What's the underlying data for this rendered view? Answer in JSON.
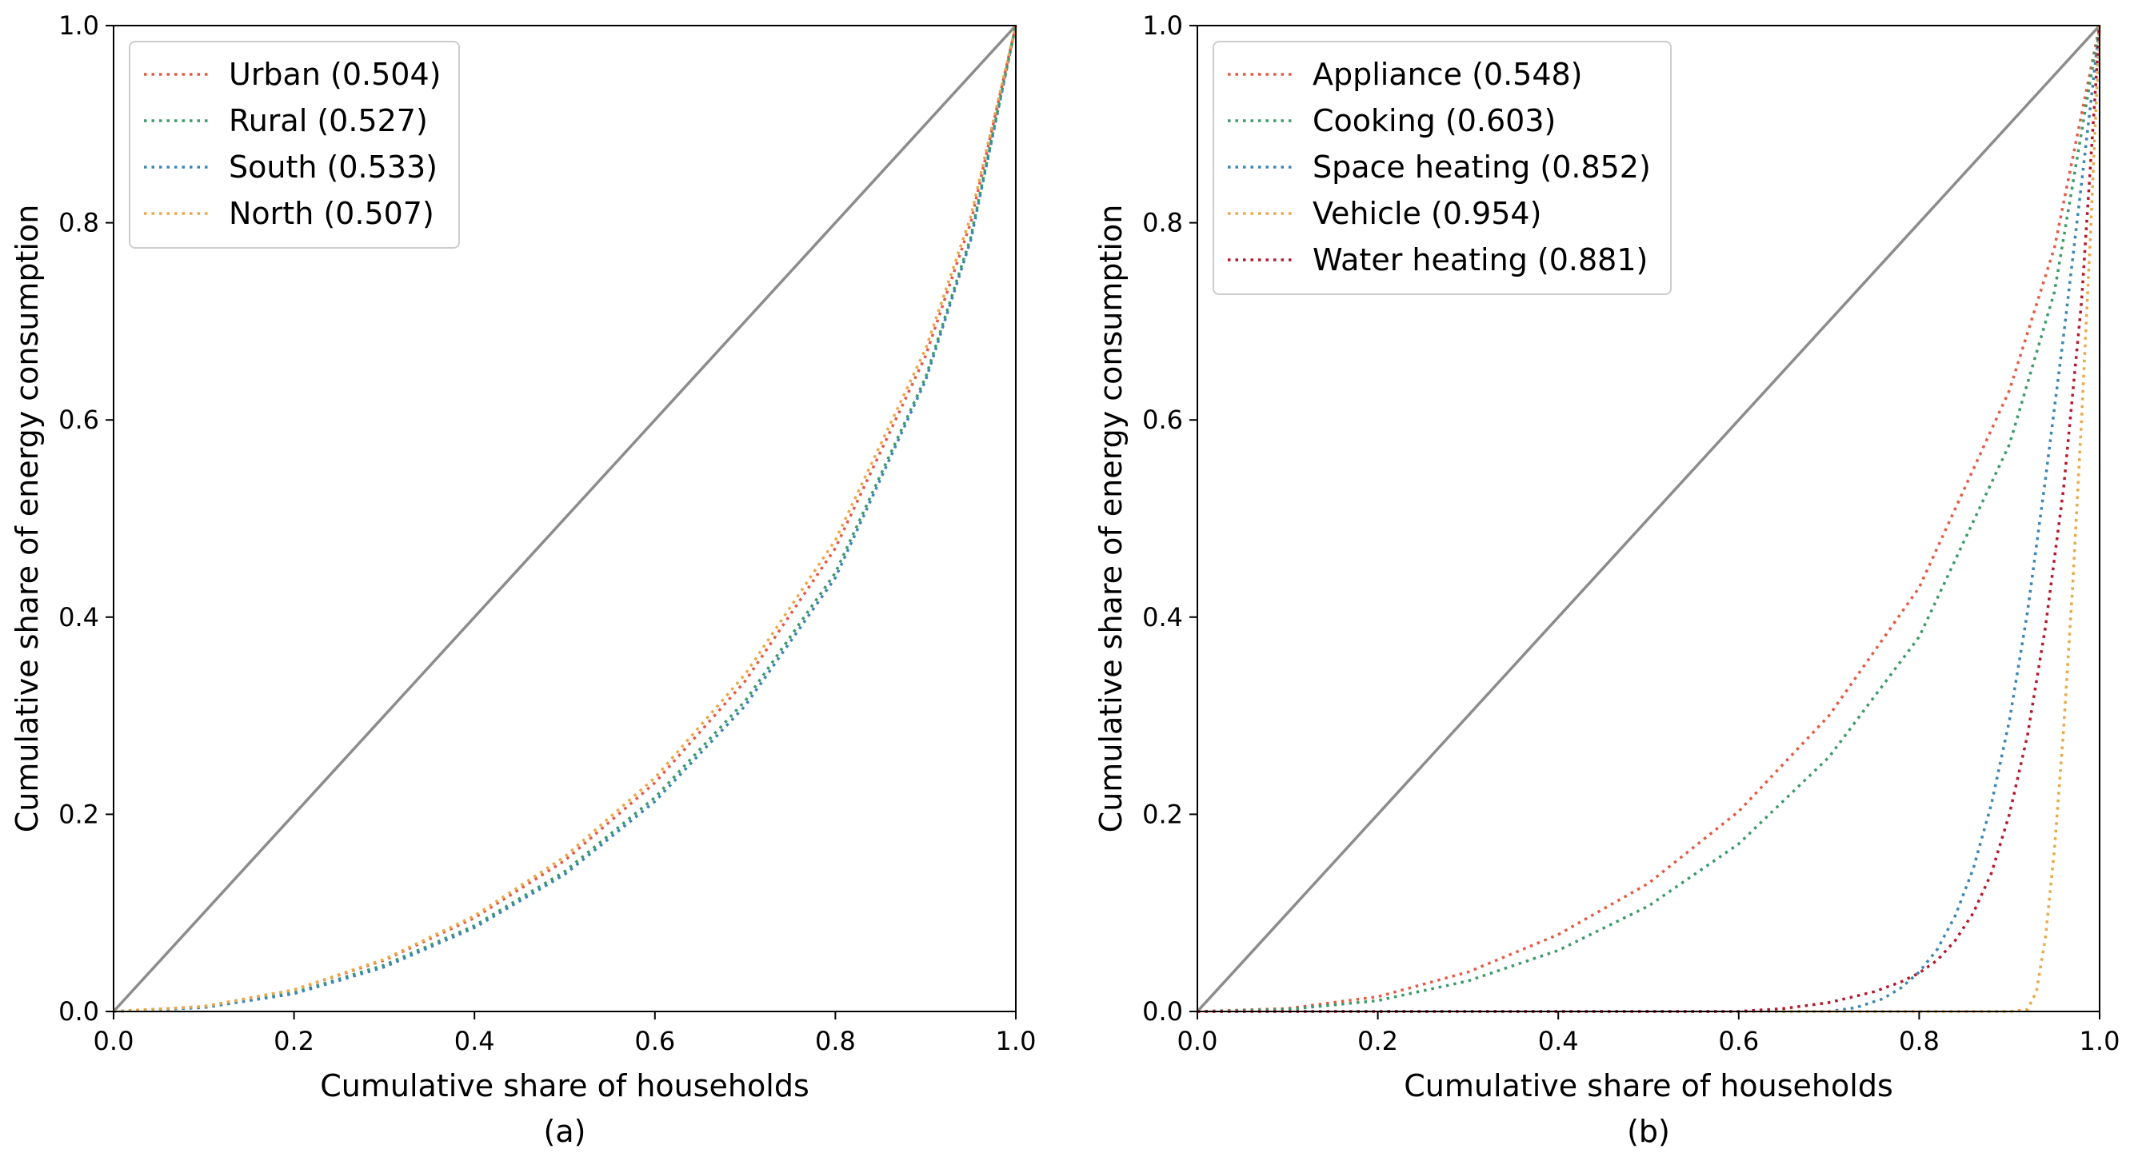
{
  "chart_data": [
    {
      "type": "line",
      "panel_label": "(a)",
      "xlabel": "Cumulative share of households",
      "ylabel": "Cumulative share of energy consumption",
      "xlim": [
        0,
        1
      ],
      "ylim": [
        0,
        1
      ],
      "xticks": [
        "0.0",
        "0.2",
        "0.4",
        "0.6",
        "0.8",
        "1.0"
      ],
      "yticks": [
        "0.0",
        "0.2",
        "0.4",
        "0.6",
        "0.8",
        "1.0"
      ],
      "grid": false,
      "legend_position": "top-left",
      "reference_line": {
        "x": [
          0,
          1
        ],
        "y": [
          0,
          1
        ],
        "color": "#8c8c8c"
      },
      "series": [
        {
          "name": "Urban (0.504)",
          "color": "#e45a44",
          "x": [
            0,
            0.1,
            0.2,
            0.3,
            0.4,
            0.5,
            0.6,
            0.7,
            0.8,
            0.9,
            0.95,
            1.0
          ],
          "y": [
            0,
            0.005,
            0.022,
            0.052,
            0.095,
            0.153,
            0.232,
            0.335,
            0.47,
            0.665,
            0.8,
            1.0
          ]
        },
        {
          "name": "Rural (0.527)",
          "color": "#3d9a69",
          "x": [
            0,
            0.1,
            0.2,
            0.3,
            0.4,
            0.5,
            0.6,
            0.7,
            0.8,
            0.9,
            0.95,
            1.0
          ],
          "y": [
            0,
            0.004,
            0.019,
            0.047,
            0.087,
            0.142,
            0.217,
            0.315,
            0.445,
            0.643,
            0.785,
            1.0
          ]
        },
        {
          "name": "South (0.533)",
          "color": "#3a86b4",
          "x": [
            0,
            0.1,
            0.2,
            0.3,
            0.4,
            0.5,
            0.6,
            0.7,
            0.8,
            0.9,
            0.95,
            1.0
          ],
          "y": [
            0,
            0.004,
            0.018,
            0.045,
            0.085,
            0.139,
            0.213,
            0.31,
            0.44,
            0.64,
            0.782,
            1.0
          ]
        },
        {
          "name": "North (0.507)",
          "color": "#e8a94a",
          "x": [
            0,
            0.1,
            0.2,
            0.3,
            0.4,
            0.5,
            0.6,
            0.7,
            0.8,
            0.9,
            0.95,
            1.0
          ],
          "y": [
            0,
            0.005,
            0.022,
            0.053,
            0.097,
            0.157,
            0.237,
            0.342,
            0.478,
            0.672,
            0.806,
            1.0
          ]
        }
      ]
    },
    {
      "type": "line",
      "panel_label": "(b)",
      "xlabel": "Cumulative share of households",
      "ylabel": "Cumulative share of energy consumption",
      "xlim": [
        0,
        1
      ],
      "ylim": [
        0,
        1
      ],
      "xticks": [
        "0.0",
        "0.2",
        "0.4",
        "0.6",
        "0.8",
        "1.0"
      ],
      "yticks": [
        "0.0",
        "0.2",
        "0.4",
        "0.6",
        "0.8",
        "1.0"
      ],
      "grid": false,
      "legend_position": "top-left",
      "reference_line": {
        "x": [
          0,
          1
        ],
        "y": [
          0,
          1
        ],
        "color": "#8c8c8c"
      },
      "series": [
        {
          "name": "Appliance (0.548)",
          "color": "#e45a44",
          "x": [
            0,
            0.1,
            0.2,
            0.3,
            0.4,
            0.5,
            0.6,
            0.7,
            0.8,
            0.9,
            0.95,
            1.0
          ],
          "y": [
            0,
            0.003,
            0.015,
            0.04,
            0.078,
            0.13,
            0.203,
            0.3,
            0.43,
            0.63,
            0.775,
            1.0
          ]
        },
        {
          "name": "Cooking (0.603)",
          "color": "#3d9a69",
          "x": [
            0,
            0.1,
            0.2,
            0.3,
            0.4,
            0.5,
            0.6,
            0.7,
            0.8,
            0.9,
            0.95,
            1.0
          ],
          "y": [
            0,
            0.002,
            0.011,
            0.031,
            0.062,
            0.107,
            0.17,
            0.258,
            0.38,
            0.575,
            0.73,
            1.0
          ]
        },
        {
          "name": "Space heating (0.852)",
          "color": "#3a86b4",
          "x": [
            0,
            0.6,
            0.7,
            0.73,
            0.76,
            0.78,
            0.8,
            0.82,
            0.84,
            0.86,
            0.88,
            0.9,
            0.92,
            0.94,
            0.96,
            0.98,
            1.0
          ],
          "y": [
            0,
            0,
            0,
            0.004,
            0.013,
            0.024,
            0.04,
            0.063,
            0.097,
            0.145,
            0.21,
            0.295,
            0.405,
            0.54,
            0.685,
            0.84,
            1.0
          ]
        },
        {
          "name": "Vehicle (0.954)",
          "color": "#e8a94a",
          "x": [
            0,
            0.9,
            0.92,
            0.93,
            0.94,
            0.95,
            0.96,
            0.97,
            0.98,
            0.99,
            1.0
          ],
          "y": [
            0,
            0,
            0.002,
            0.02,
            0.075,
            0.165,
            0.285,
            0.43,
            0.6,
            0.79,
            1.0
          ]
        },
        {
          "name": "Water heating (0.881)",
          "color": "#b5182b",
          "x": [
            0,
            0.6,
            0.65,
            0.7,
            0.75,
            0.78,
            0.8,
            0.82,
            0.84,
            0.86,
            0.88,
            0.9,
            0.92,
            0.94,
            0.96,
            0.98,
            1.0
          ],
          "y": [
            0,
            0,
            0.003,
            0.009,
            0.02,
            0.03,
            0.039,
            0.052,
            0.072,
            0.1,
            0.14,
            0.2,
            0.28,
            0.39,
            0.53,
            0.72,
            1.0
          ]
        }
      ]
    }
  ]
}
